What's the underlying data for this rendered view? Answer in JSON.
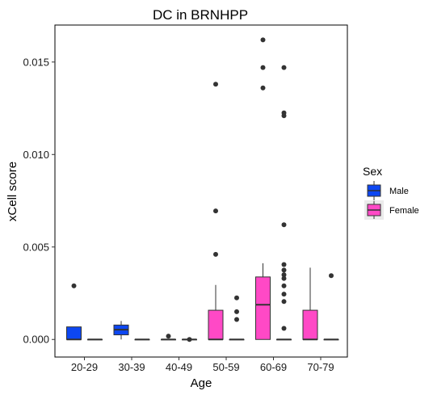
{
  "chart_data": {
    "type": "boxplot",
    "title": "DC in BRNHPP",
    "xlabel": "Age",
    "ylabel": "xCell score",
    "ylim": [
      -0.00095,
      0.017
    ],
    "yticks": [
      0.0,
      0.005,
      0.01,
      0.015
    ],
    "ytick_labels": [
      "0.000",
      "0.005",
      "0.010",
      "0.015"
    ],
    "categories": [
      "20-29",
      "30-39",
      "40-49",
      "50-59",
      "60-69",
      "70-79"
    ],
    "grid": false,
    "legend": {
      "title": "Sex",
      "placement": "right",
      "entries": [
        {
          "label": "Male",
          "color": "#0d47f2"
        },
        {
          "label": "Female",
          "color": "#ff49c6"
        }
      ]
    },
    "series": [
      {
        "name": "Male",
        "color": "#0d47f2",
        "boxes": [
          {
            "category": "20-29",
            "min": 0.0,
            "q1": 0.0,
            "median": 0.0,
            "q3": 0.00068,
            "max": 0.00068,
            "outliers": [
              0.0029
            ]
          },
          {
            "category": "30-39",
            "min": 0.0,
            "q1": 0.00025,
            "median": 0.00053,
            "q3": 0.00078,
            "max": 0.001,
            "outliers": []
          }
        ]
      },
      {
        "name": "Female",
        "color": "#ff49c6",
        "boxes": [
          {
            "category": "50-59",
            "min": 0.0,
            "q1": 0.0,
            "median": 0.0,
            "q3": 0.00158,
            "max": 0.00295,
            "outliers": [
              0.00695,
              0.0046,
              0.0138
            ]
          },
          {
            "category": "60-69",
            "min": 0.0,
            "q1": 0.0,
            "median": 0.00188,
            "q3": 0.00338,
            "max": 0.00412,
            "outliers": [
              0.0162,
              0.0147,
              0.0136
            ]
          },
          {
            "category": "70-79",
            "min": 0.0,
            "q1": 0.0,
            "median": 0.0,
            "q3": 0.00158,
            "max": 0.00388,
            "outliers": []
          }
        ]
      },
      {
        "name": "",
        "color": "#808080",
        "boxes": [
          {
            "category": "20-29",
            "min": 0.0,
            "q1": 0.0,
            "median": 0.0,
            "q3": 0.0,
            "max": 0.0,
            "outliers": []
          },
          {
            "category": "30-39",
            "min": 0.0,
            "q1": 0.0,
            "median": 0.0,
            "q3": 0.0,
            "max": 0.0,
            "outliers": []
          },
          {
            "category": "40-49",
            "min": 0.0,
            "q1": 0.0,
            "median": 0.0,
            "q3": 0.0,
            "max": 0.0,
            "outliers": [
              0.00018
            ]
          },
          {
            "category": "40-49",
            "min": 0.0,
            "q1": 0.0,
            "median": 0.0,
            "q3": 0.0,
            "max": 0.0,
            "outliers": [
              0.0
            ]
          },
          {
            "category": "50-59",
            "min": 0.0,
            "q1": 0.0,
            "median": 0.0,
            "q3": 0.0,
            "max": 0.0,
            "outliers": [
              0.00225,
              0.0015,
              0.00108
            ]
          },
          {
            "category": "60-69",
            "min": 0.0,
            "q1": 0.0,
            "median": 0.0,
            "q3": 0.0,
            "max": 0.0,
            "outliers": [
              0.0147,
              0.01225,
              0.0121,
              0.0062,
              0.00405,
              0.00375,
              0.0035,
              0.0033,
              0.0029,
              0.00245,
              0.00205,
              0.0006
            ]
          },
          {
            "category": "70-79",
            "min": 0.0,
            "q1": 0.0,
            "median": 0.0,
            "q3": 0.0,
            "max": 0.0,
            "outliers": [
              0.00345
            ]
          }
        ]
      }
    ]
  }
}
